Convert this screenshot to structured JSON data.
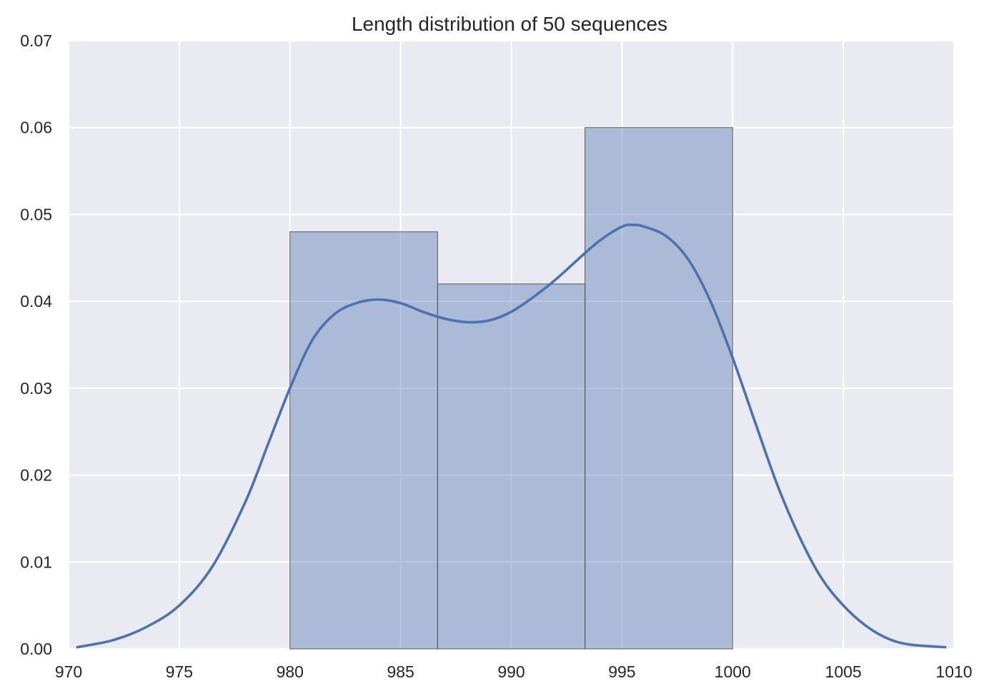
{
  "chart_data": {
    "type": "bar",
    "title": "Length distribution of 50 sequences",
    "xlabel": "",
    "ylabel": "",
    "xlim": [
      970,
      1010
    ],
    "ylim": [
      0,
      0.07
    ],
    "grid": true,
    "x_ticks": [
      970,
      975,
      980,
      985,
      990,
      995,
      1000,
      1005,
      1010
    ],
    "y_ticks": [
      0.0,
      0.01,
      0.02,
      0.03,
      0.04,
      0.05,
      0.06,
      0.07
    ],
    "x_tick_labels": [
      "970",
      "975",
      "980",
      "985",
      "990",
      "995",
      "1000",
      "1005",
      "1010"
    ],
    "y_tick_labels": [
      "0.00",
      "0.01",
      "0.02",
      "0.03",
      "0.04",
      "0.05",
      "0.06",
      "0.07"
    ],
    "histogram": {
      "bin_edges": [
        980.0,
        986.67,
        993.33,
        1000.0
      ],
      "values": [
        0.048,
        0.042,
        0.06
      ]
    },
    "kde": {
      "x": [
        970.4,
        972,
        973.5,
        975,
        976.5,
        978,
        979,
        980,
        981,
        982,
        983,
        984,
        985,
        986,
        987,
        988,
        989,
        990,
        991,
        992,
        993,
        994,
        995,
        995.5,
        996,
        997,
        998,
        999,
        1000,
        1001,
        1002,
        1003,
        1004,
        1005,
        1006,
        1007,
        1008,
        1009.6
      ],
      "y": [
        0.0002,
        0.001,
        0.0025,
        0.005,
        0.0095,
        0.017,
        0.0235,
        0.03,
        0.0355,
        0.0385,
        0.0398,
        0.0402,
        0.0398,
        0.0388,
        0.038,
        0.0376,
        0.0378,
        0.0388,
        0.0405,
        0.0425,
        0.0448,
        0.047,
        0.0486,
        0.0488,
        0.0486,
        0.0475,
        0.0448,
        0.04,
        0.0335,
        0.0262,
        0.019,
        0.013,
        0.0082,
        0.005,
        0.0027,
        0.0012,
        0.0005,
        0.0002
      ]
    },
    "colors": {
      "plot_background": "#EAEAF2",
      "grid": "#FFFFFF",
      "bar_fill": "#4C72B0",
      "bar_fill_opacity": 0.4,
      "bar_edge": "#555555",
      "kde_line": "#4C72B0",
      "text": "#262626"
    }
  }
}
